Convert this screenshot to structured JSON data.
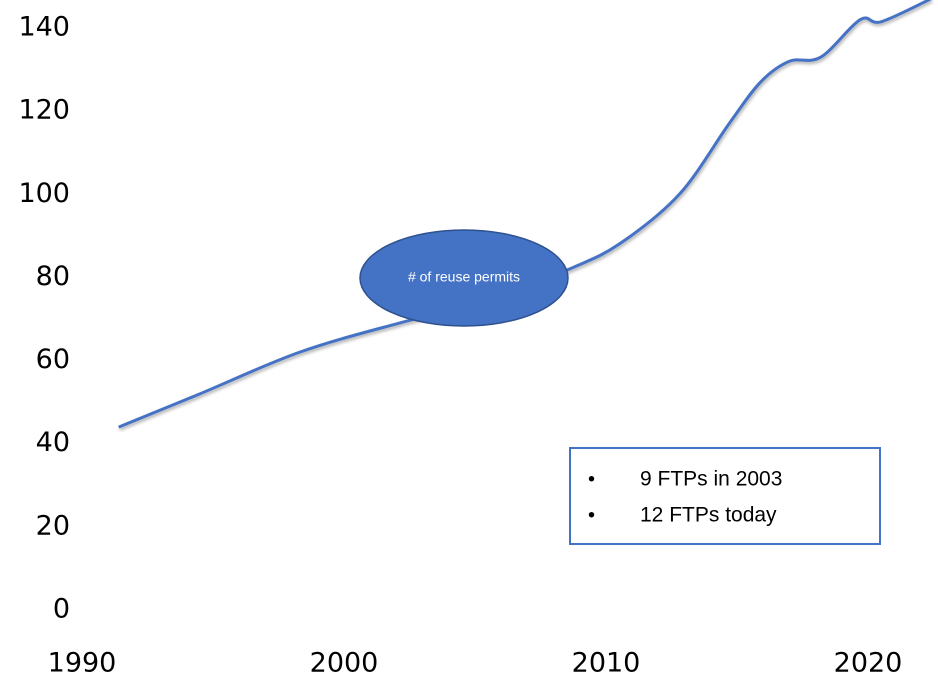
{
  "chart_data": {
    "type": "line",
    "x": [
      1991.4,
      1994.5,
      1998.3,
      2002.1,
      2005.9,
      2008.6,
      2010.5,
      2012.8,
      2014.7,
      2015.9,
      2017,
      2018.2,
      2019.7,
      2020.5,
      2022.4
    ],
    "series": [
      {
        "name": "# of reuse permits",
        "color": "#4472c4",
        "values": [
          44,
          52,
          62,
          69,
          75,
          82,
          88,
          100,
          117,
          127,
          132,
          133,
          142,
          141.5,
          147
        ]
      }
    ],
    "xlim": [
      1990,
      2020
    ],
    "xticks": [
      1990,
      2000,
      2010,
      2020
    ],
    "ylim": [
      0,
      140
    ],
    "yticks": [
      0,
      20,
      40,
      60,
      80,
      100,
      120,
      140
    ],
    "grid": false,
    "annotations": [
      "9 FTPs in 2003",
      "12 FTPs today"
    ]
  }
}
